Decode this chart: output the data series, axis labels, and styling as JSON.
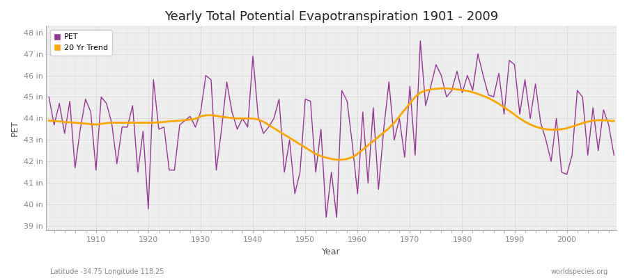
{
  "title": "Yearly Total Potential Evapotranspiration 1901 - 2009",
  "xlabel": "Year",
  "ylabel": "PET",
  "subtitle_left": "Latitude -34.75 Longitude 118.25",
  "subtitle_right": "worldspecies.org",
  "pet_color": "#993399",
  "trend_color": "#FFA500",
  "background_color": "#ffffff",
  "plot_bg_color": "#eeeeee",
  "ylim": [
    38.8,
    48.3
  ],
  "yticks": [
    39,
    40,
    41,
    42,
    43,
    44,
    45,
    46,
    47,
    48
  ],
  "ytick_labels": [
    "39 in",
    "40 in",
    "41 in",
    "42 in",
    "43 in",
    "44 in",
    "45 in",
    "46 in",
    "47 in",
    "48 in"
  ],
  "xlim": [
    1900.5,
    2009.5
  ],
  "xticks": [
    1910,
    1920,
    1930,
    1940,
    1950,
    1960,
    1970,
    1980,
    1990,
    2000
  ],
  "years": [
    1901,
    1902,
    1903,
    1904,
    1905,
    1906,
    1907,
    1908,
    1909,
    1910,
    1911,
    1912,
    1913,
    1914,
    1915,
    1916,
    1917,
    1918,
    1919,
    1920,
    1921,
    1922,
    1923,
    1924,
    1925,
    1926,
    1927,
    1928,
    1929,
    1930,
    1931,
    1932,
    1933,
    1934,
    1935,
    1936,
    1937,
    1938,
    1939,
    1940,
    1941,
    1942,
    1943,
    1944,
    1945,
    1946,
    1947,
    1948,
    1949,
    1950,
    1951,
    1952,
    1953,
    1954,
    1955,
    1956,
    1957,
    1958,
    1959,
    1960,
    1961,
    1962,
    1963,
    1964,
    1965,
    1966,
    1967,
    1968,
    1969,
    1970,
    1971,
    1972,
    1973,
    1974,
    1975,
    1976,
    1977,
    1978,
    1979,
    1980,
    1981,
    1982,
    1983,
    1984,
    1985,
    1986,
    1987,
    1988,
    1989,
    1990,
    1991,
    1992,
    1993,
    1994,
    1995,
    1996,
    1997,
    1998,
    1999,
    2000,
    2001,
    2002,
    2003,
    2004,
    2005,
    2006,
    2007,
    2008,
    2009
  ],
  "pet_values": [
    45.0,
    43.7,
    44.7,
    43.3,
    44.8,
    41.7,
    43.5,
    44.9,
    44.3,
    41.6,
    45.0,
    44.7,
    43.8,
    41.9,
    43.6,
    43.6,
    44.6,
    41.5,
    43.4,
    39.8,
    45.8,
    43.5,
    43.6,
    41.6,
    41.6,
    43.7,
    43.9,
    44.1,
    43.6,
    44.3,
    46.0,
    45.8,
    41.6,
    43.5,
    45.7,
    44.3,
    43.5,
    44.0,
    43.6,
    46.9,
    44.1,
    43.3,
    43.6,
    44.0,
    44.9,
    41.5,
    43.0,
    40.5,
    41.5,
    44.9,
    44.8,
    41.5,
    43.5,
    39.4,
    41.5,
    39.4,
    45.3,
    44.8,
    42.8,
    40.5,
    44.3,
    41.0,
    44.5,
    40.7,
    43.5,
    45.7,
    43.0,
    44.0,
    42.2,
    45.5,
    42.3,
    47.6,
    44.6,
    45.5,
    46.5,
    46.0,
    45.0,
    45.3,
    46.2,
    45.2,
    46.0,
    45.3,
    47.0,
    46.0,
    45.1,
    45.0,
    46.1,
    44.2,
    46.7,
    46.5,
    44.2,
    45.8,
    44.0,
    45.6,
    43.8,
    43.0,
    42.0,
    44.0,
    41.5,
    41.4,
    42.3,
    45.3,
    45.0,
    42.3,
    44.5,
    42.5,
    44.4,
    43.7,
    42.3
  ],
  "trend_years": [
    1901,
    1902,
    1903,
    1904,
    1905,
    1906,
    1907,
    1908,
    1909,
    1910,
    1911,
    1912,
    1913,
    1914,
    1915,
    1916,
    1917,
    1918,
    1919,
    1920,
    1921,
    1922,
    1923,
    1924,
    1925,
    1926,
    1927,
    1928,
    1929,
    1930,
    1931,
    1932,
    1933,
    1934,
    1935,
    1936,
    1937,
    1938,
    1939,
    1940,
    1941,
    1942,
    1943,
    1944,
    1945,
    1946,
    1947,
    1948,
    1949,
    1950,
    1951,
    1952,
    1953,
    1954,
    1955,
    1956,
    1957,
    1958,
    1959,
    1960,
    1961,
    1962,
    1963,
    1964,
    1965,
    1966,
    1967,
    1968,
    1969,
    1970,
    1971,
    1972,
    1973,
    1974,
    1975,
    1976,
    1977,
    1978,
    1979,
    1980,
    1981,
    1982,
    1983,
    1984,
    1985,
    1986,
    1987,
    1988,
    1989,
    1990,
    1991,
    1992,
    1993,
    1994,
    1995,
    1996,
    1997,
    1998,
    1999,
    2000,
    2001,
    2002,
    2003,
    2004,
    2005,
    2006,
    2007,
    2008,
    2009
  ],
  "trend_values": [
    43.9,
    43.88,
    43.86,
    43.84,
    43.82,
    43.8,
    43.78,
    43.76,
    43.74,
    43.72,
    43.75,
    43.78,
    43.8,
    43.8,
    43.8,
    43.8,
    43.8,
    43.8,
    43.8,
    43.8,
    43.8,
    43.82,
    43.84,
    43.86,
    43.88,
    43.9,
    43.92,
    43.95,
    43.98,
    44.1,
    44.15,
    44.15,
    44.12,
    44.08,
    44.05,
    44.02,
    44.0,
    44.0,
    44.0,
    44.0,
    43.95,
    43.85,
    43.7,
    43.55,
    43.4,
    43.25,
    43.1,
    42.95,
    42.8,
    42.65,
    42.5,
    42.35,
    42.25,
    42.18,
    42.12,
    42.08,
    42.08,
    42.12,
    42.2,
    42.35,
    42.55,
    42.75,
    42.95,
    43.15,
    43.35,
    43.55,
    43.8,
    44.1,
    44.4,
    44.7,
    45.0,
    45.2,
    45.3,
    45.35,
    45.38,
    45.4,
    45.4,
    45.38,
    45.35,
    45.32,
    45.28,
    45.22,
    45.14,
    45.05,
    44.95,
    44.82,
    44.68,
    44.52,
    44.35,
    44.18,
    44.0,
    43.85,
    43.72,
    43.62,
    43.55,
    43.5,
    43.48,
    43.48,
    43.5,
    43.55,
    43.62,
    43.7,
    43.78,
    43.85,
    43.9,
    43.92,
    43.92,
    43.9,
    43.88
  ],
  "legend_pet_label": "PET",
  "legend_trend_label": "20 Yr Trend"
}
